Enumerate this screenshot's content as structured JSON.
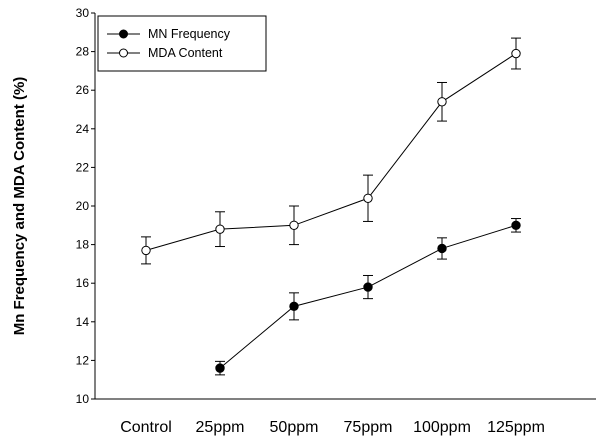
{
  "chart_data": {
    "type": "line",
    "categories": [
      "Control",
      "25ppm",
      "50ppm",
      "75ppm",
      "100ppm",
      "125ppm"
    ],
    "ylabel": "Mn Frequency and MDA Content  (%)",
    "xlabel": "",
    "ylim": [
      10,
      30
    ],
    "yticks": [
      10,
      12,
      14,
      16,
      18,
      20,
      22,
      24,
      26,
      28,
      30
    ],
    "grid": false,
    "legend_position": "top-left",
    "series": [
      {
        "name": "MN Frequency",
        "marker": "filled-circle",
        "values": [
          null,
          11.6,
          14.8,
          15.8,
          17.8,
          19.0
        ],
        "errors": [
          null,
          0.35,
          0.7,
          0.6,
          0.55,
          0.35
        ]
      },
      {
        "name": "MDA Content",
        "marker": "open-circle",
        "values": [
          17.7,
          18.8,
          19.0,
          20.4,
          25.4,
          27.9
        ],
        "errors": [
          0.7,
          0.9,
          1.0,
          1.2,
          1.0,
          0.8
        ]
      }
    ]
  }
}
